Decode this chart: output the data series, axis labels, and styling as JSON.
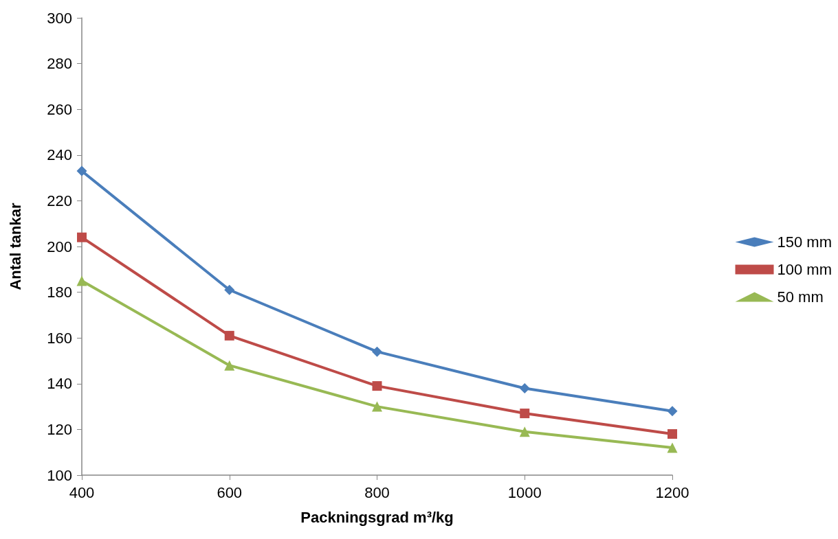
{
  "chart_data": {
    "type": "line",
    "xlabel": "Packningsgrad m³/kg",
    "ylabel": "Antal tankar",
    "x": [
      400,
      600,
      800,
      1000,
      1200
    ],
    "xlim": [
      400,
      1200
    ],
    "xticks": [
      400,
      600,
      800,
      1000,
      1200
    ],
    "ylim": [
      100,
      300
    ],
    "yticks": [
      100,
      120,
      140,
      160,
      180,
      200,
      220,
      240,
      260,
      280,
      300
    ],
    "grid": false,
    "legend": "right",
    "line_style": "solid",
    "series": [
      {
        "name": "150 mm",
        "color": "#4a7ebb",
        "marker": "diamond",
        "values": [
          233,
          181,
          154,
          138,
          128
        ]
      },
      {
        "name": "100 mm",
        "color": "#be4b48",
        "marker": "square",
        "values": [
          204,
          161,
          139,
          127,
          118
        ]
      },
      {
        "name": "50 mm",
        "color": "#98b954",
        "marker": "triangle",
        "values": [
          185,
          148,
          130,
          119,
          112
        ]
      }
    ]
  }
}
